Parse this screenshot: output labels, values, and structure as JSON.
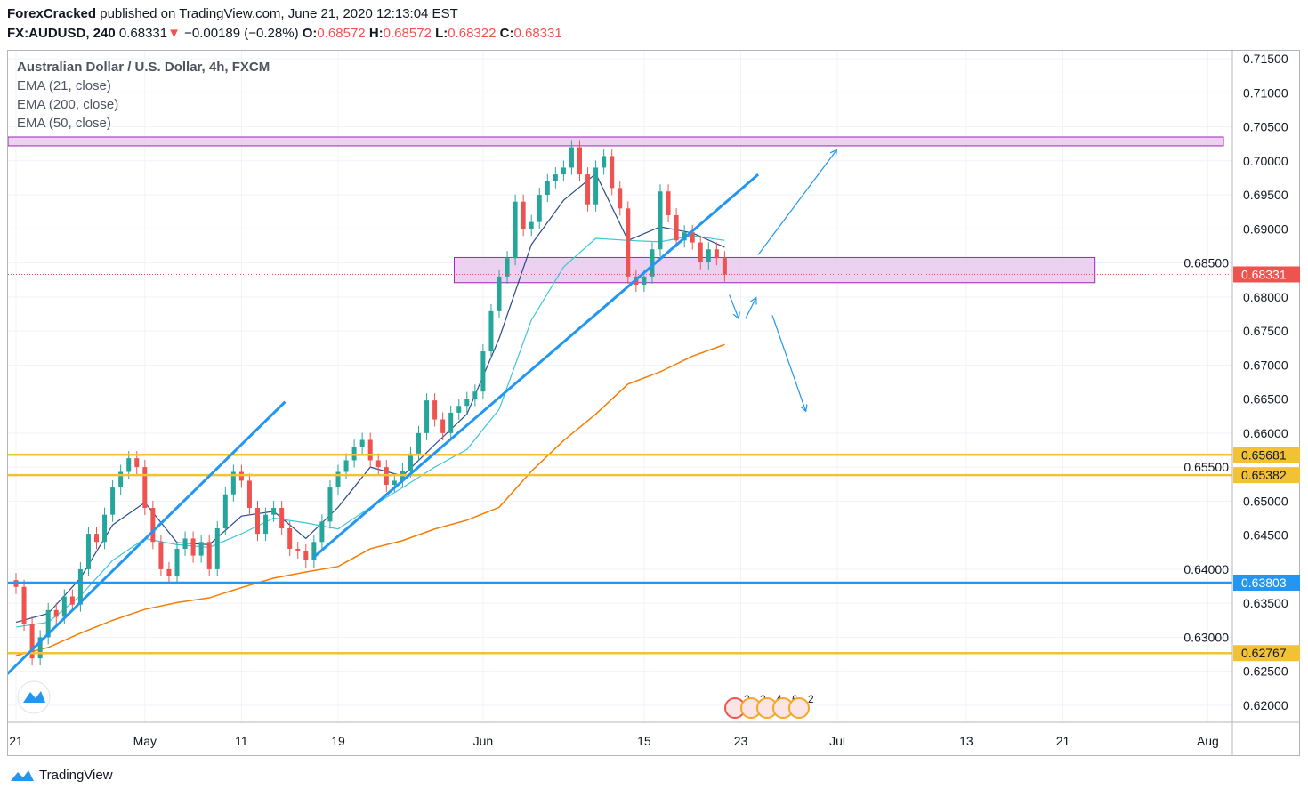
{
  "header": {
    "author": "ForexCracked",
    "published": " published on TradingView.com, June 21, 2020 12:13:04 EST",
    "symbol": "FX:AUDUSD, 240",
    "last": "0.68331",
    "change": "−0.00189 (−0.28%)",
    "o_label": "O:",
    "o": "0.68572",
    "h_label": "H:",
    "h": "0.68572",
    "l_label": "L:",
    "l": "0.68322",
    "c_label": "C:",
    "c": "0.68331"
  },
  "legend": {
    "title": "Australian Dollar / U.S. Dollar, 4h, FXCM",
    "studies": [
      "EMA (21, close)",
      "EMA (200, close)",
      "EMA (50, close)"
    ]
  },
  "footer": {
    "brand": "TradingView"
  },
  "colors": {
    "up": "#26a69a",
    "down": "#ef5350",
    "ema21": "#2a4a8c",
    "ema50": "#3cc6d6",
    "ema200": "#f57c00",
    "trend": "#2196f3",
    "yellow": "#f3c234",
    "zone_fill": "#e9c6ee",
    "zone_border": "#9c27b0",
    "grid": "#f0f3fa"
  },
  "chart_data": {
    "type": "candlestick",
    "ylim": [
      0.6175,
      0.7165
    ],
    "yticks": [
      "0.62000",
      "0.62500",
      "0.63000",
      "0.63500",
      "0.64000",
      "0.64500",
      "0.65000",
      "0.65500",
      "0.66000",
      "0.66500",
      "0.67000",
      "0.67500",
      "0.68000",
      "0.68500",
      "0.69000",
      "0.69500",
      "0.70000",
      "0.70500",
      "0.71000",
      "0.71500"
    ],
    "xticks": [
      {
        "date": "2020-04-21",
        "label": "21"
      },
      {
        "date": "2020-05-01",
        "label": "May"
      },
      {
        "date": "2020-05-11",
        "label": "11"
      },
      {
        "date": "2020-05-19",
        "label": "19"
      },
      {
        "date": "2020-06-01",
        "label": "Jun"
      },
      {
        "date": "2020-06-15",
        "label": "15"
      },
      {
        "date": "2020-06-23",
        "label": "23"
      },
      {
        "date": "2020-07-01",
        "label": "Jul"
      },
      {
        "date": "2020-07-13",
        "label": "13"
      },
      {
        "date": "2020-07-21",
        "label": "21"
      },
      {
        "date": "2020-08-03",
        "label": "Aug"
      }
    ],
    "price_series": {
      "start": "2020-04-21",
      "step": "12h",
      "close": [
        0.6374,
        0.632,
        0.6269,
        0.63,
        0.634,
        0.633,
        0.636,
        0.6348,
        0.64,
        0.6452,
        0.644,
        0.648,
        0.652,
        0.6543,
        0.6563,
        0.655,
        0.649,
        0.644,
        0.64,
        0.639,
        0.643,
        0.6445,
        0.642,
        0.644,
        0.64,
        0.646,
        0.651,
        0.6543,
        0.653,
        0.649,
        0.6452,
        0.648,
        0.649,
        0.646,
        0.643,
        0.6426,
        0.6413,
        0.644,
        0.647,
        0.652,
        0.6543,
        0.656,
        0.658,
        0.659,
        0.656,
        0.655,
        0.6524,
        0.653,
        0.6545,
        0.657,
        0.66,
        0.6648,
        0.662,
        0.66,
        0.663,
        0.664,
        0.665,
        0.6661,
        0.672,
        0.6779,
        0.683,
        0.6857,
        0.694,
        0.69,
        0.691,
        0.695,
        0.697,
        0.698,
        0.699,
        0.702,
        0.698,
        0.6936,
        0.699,
        0.7007,
        0.696,
        0.693,
        0.683,
        0.6818,
        0.683,
        0.687,
        0.6955,
        0.692,
        0.6883,
        0.6895,
        0.688,
        0.6851,
        0.687,
        0.6857,
        0.6833
      ]
    },
    "series": [
      {
        "name": "EMA (21, close)",
        "key": "ema21",
        "start": "2020-04-21",
        "step_trading_days": 2,
        "values": [
          0.6322,
          0.6335,
          0.6387,
          0.6465,
          0.6498,
          0.6439,
          0.6436,
          0.6478,
          0.6485,
          0.6445,
          0.6491,
          0.655,
          0.6537,
          0.6583,
          0.6628,
          0.6739,
          0.6877,
          0.6942,
          0.6981,
          0.6883,
          0.6903,
          0.6894,
          0.6873
        ]
      },
      {
        "name": "EMA (50, close)",
        "key": "ema50",
        "start": "2020-04-21",
        "step_trading_days": 2,
        "values": [
          0.6315,
          0.6322,
          0.6361,
          0.6413,
          0.6445,
          0.6436,
          0.6432,
          0.6452,
          0.6475,
          0.6468,
          0.6459,
          0.6491,
          0.652,
          0.655,
          0.6576,
          0.6635,
          0.6766,
          0.6844,
          0.6886,
          0.6883,
          0.6881,
          0.689,
          0.6883
        ]
      },
      {
        "name": "EMA (200, close)",
        "key": "ema200",
        "start": "2020-04-21",
        "step_trading_days": 2,
        "values": [
          0.6273,
          0.6285,
          0.6306,
          0.6325,
          0.6341,
          0.6351,
          0.6358,
          0.6373,
          0.6387,
          0.6396,
          0.6404,
          0.643,
          0.6442,
          0.6459,
          0.6472,
          0.6491,
          0.6544,
          0.6589,
          0.6628,
          0.6672,
          0.669,
          0.6713,
          0.673
        ]
      }
    ],
    "horizontal_lines": [
      {
        "price": 0.65681,
        "label": "0.65681",
        "color": "#f3c234"
      },
      {
        "price": 0.65382,
        "label": "0.65382",
        "color": "#f3c234"
      },
      {
        "price": 0.63803,
        "label": "0.63803",
        "color": "#2196f3"
      },
      {
        "price": 0.62767,
        "label": "0.62767",
        "color": "#f3c234"
      }
    ],
    "last_price": {
      "price": 0.68331,
      "label": "0.68331"
    },
    "zones": [
      {
        "from": "2020-04-20 00:00",
        "to": "2020-08-04 00:00",
        "top": 0.7035,
        "bottom": 0.7022
      },
      {
        "from": "2020-05-28 05:00",
        "to": "2020-07-23 00:00",
        "top": 0.6858,
        "bottom": 0.6821
      }
    ],
    "trend_lines": [
      {
        "from": [
          "2020-04-20 11:00",
          0.6246
        ],
        "to": [
          "2020-05-13 17:00",
          0.6646
        ]
      },
      {
        "from": [
          "2020-05-15 11:00",
          0.6417
        ],
        "to": [
          "2020-06-24 02:00",
          0.698
        ]
      }
    ],
    "arrows": [
      {
        "from": [
          "2020-06-24 02:00",
          0.6862
        ],
        "to": [
          "2020-06-30 23:00",
          0.7016
        ]
      },
      {
        "from": [
          "2020-06-22 07:00",
          0.6803
        ],
        "to": [
          "2020-06-22 21:00",
          0.6768
        ]
      },
      {
        "from": [
          "2020-06-23 07:00",
          0.6768
        ],
        "to": [
          "2020-06-23 23:00",
          0.6799
        ]
      },
      {
        "from": [
          "2020-06-24 23:00",
          0.6773
        ],
        "to": [
          "2020-06-29 01:00",
          0.6632
        ]
      }
    ],
    "events": [
      "2",
      "2",
      "4",
      "6",
      "2"
    ]
  }
}
